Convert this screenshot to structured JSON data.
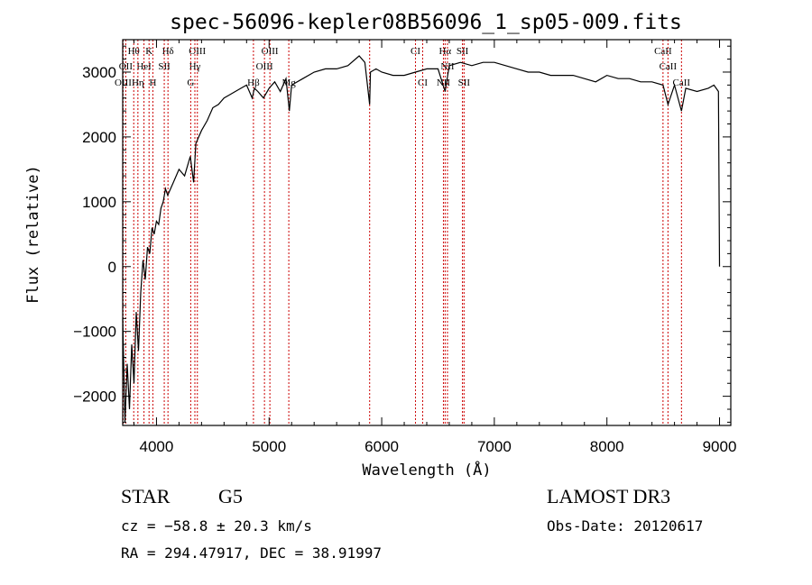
{
  "chart_data": {
    "type": "line",
    "title": "spec-56096-kepler08B56096_1_sp05-009.fits",
    "xlabel": "Wavelength (Å)",
    "ylabel": "Flux (relative)",
    "xlim": [
      3700,
      9100
    ],
    "ylim": [
      -2450,
      3500
    ],
    "x_ticks": [
      4000,
      5000,
      6000,
      7000,
      8000,
      9000
    ],
    "y_ticks": [
      -2000,
      -1000,
      0,
      1000,
      2000,
      3000
    ],
    "y_tick_labels": [
      "−2000",
      "−1000",
      "0",
      "1000",
      "2000",
      "3000"
    ],
    "grid": false,
    "series": [
      {
        "x": [
          3700,
          3720,
          3740,
          3760,
          3780,
          3800,
          3820,
          3840,
          3860,
          3880,
          3900,
          3920,
          3940,
          3960,
          3980,
          4000,
          4020,
          4040,
          4060,
          4080,
          4100,
          4150,
          4200,
          4250,
          4300,
          4330,
          4350,
          4400,
          4450,
          4500,
          4550,
          4600,
          4650,
          4700,
          4750,
          4800,
          4850,
          4870,
          4900,
          4950,
          5000,
          5050,
          5100,
          5150,
          5180,
          5200,
          5300,
          5400,
          5500,
          5600,
          5700,
          5800,
          5850,
          5893,
          5900,
          5950,
          6000,
          6100,
          6200,
          6300,
          6400,
          6500,
          6563,
          6600,
          6700,
          6800,
          6900,
          7000,
          7100,
          7200,
          7300,
          7400,
          7500,
          7600,
          7700,
          7800,
          7900,
          8000,
          8100,
          8200,
          8300,
          8400,
          8498,
          8542,
          8600,
          8662,
          8700,
          8800,
          8900,
          8950,
          8990,
          9000
        ],
        "y": [
          -800,
          -2400,
          -1500,
          -2200,
          -1200,
          -1800,
          -700,
          -1300,
          -400,
          100,
          -200,
          300,
          200,
          600,
          500,
          700,
          650,
          900,
          1000,
          1200,
          1100,
          1300,
          1500,
          1400,
          1700,
          1300,
          1900,
          2100,
          2250,
          2450,
          2500,
          2600,
          2650,
          2700,
          2750,
          2800,
          2600,
          2750,
          2700,
          2600,
          2750,
          2850,
          2700,
          2900,
          2400,
          2800,
          2900,
          3000,
          3050,
          3050,
          3100,
          3250,
          3150,
          2500,
          3000,
          3050,
          3000,
          2950,
          2950,
          3000,
          3050,
          3050,
          2700,
          3100,
          3150,
          3100,
          3150,
          3150,
          3100,
          3050,
          3000,
          3000,
          2950,
          2950,
          2950,
          2900,
          2850,
          2950,
          2900,
          2900,
          2850,
          2850,
          2800,
          2500,
          2800,
          2400,
          2750,
          2700,
          2750,
          2800,
          2700,
          0
        ]
      }
    ],
    "lines": [
      {
        "label": "Hθ",
        "x": 3798,
        "row": 0
      },
      {
        "label": "K",
        "x": 3934,
        "row": 0
      },
      {
        "label": "Hδ",
        "x": 4102,
        "row": 0
      },
      {
        "label": "OIII",
        "x": 4363,
        "row": 0
      },
      {
        "label": "OIII",
        "x": 5007,
        "row": 0
      },
      {
        "label": "CI",
        "x": 6300,
        "row": 0
      },
      {
        "label": "Hα",
        "x": 6563,
        "row": 0
      },
      {
        "label": "SII",
        "x": 6717,
        "row": 0
      },
      {
        "label": "CaII",
        "x": 8498,
        "row": 0
      },
      {
        "label": "OII",
        "x": 3727,
        "row": 1
      },
      {
        "label": "HeI",
        "x": 3889,
        "row": 1
      },
      {
        "label": "SII",
        "x": 4069,
        "row": 1
      },
      {
        "label": "Hγ",
        "x": 4341,
        "row": 1
      },
      {
        "label": "OIII",
        "x": 4959,
        "row": 1
      },
      {
        "label": "NII",
        "x": 6584,
        "row": 1
      },
      {
        "label": "CaII",
        "x": 8542,
        "row": 1
      },
      {
        "label": "OIII",
        "x": 3704,
        "row": 2
      },
      {
        "label": "Hη",
        "x": 3835,
        "row": 2
      },
      {
        "label": "H",
        "x": 3968,
        "row": 2
      },
      {
        "label": "G",
        "x": 4304,
        "row": 2
      },
      {
        "label": "Hβ",
        "x": 4861,
        "row": 2
      },
      {
        "label": "Mg",
        "x": 5175,
        "row": 2
      },
      {
        "label": "CI",
        "x": 6364,
        "row": 2
      },
      {
        "label": "NII",
        "x": 6548,
        "row": 2
      },
      {
        "label": "SII",
        "x": 6731,
        "row": 2
      },
      {
        "label": "CaII",
        "x": 8662,
        "row": 2
      },
      {
        "label": "",
        "x": 5893,
        "row": -1
      }
    ]
  },
  "info": {
    "class": "STAR",
    "subclass": "G5",
    "survey": "LAMOST DR3",
    "cz": "cz = −58.8 ± 20.3 km/s",
    "obs_date": "Obs-Date: 20120617",
    "coords": "RA = 294.47917, DEC =  38.91997"
  },
  "colors": {
    "spectrum": "#000000",
    "line_markers": "#cc0000"
  }
}
